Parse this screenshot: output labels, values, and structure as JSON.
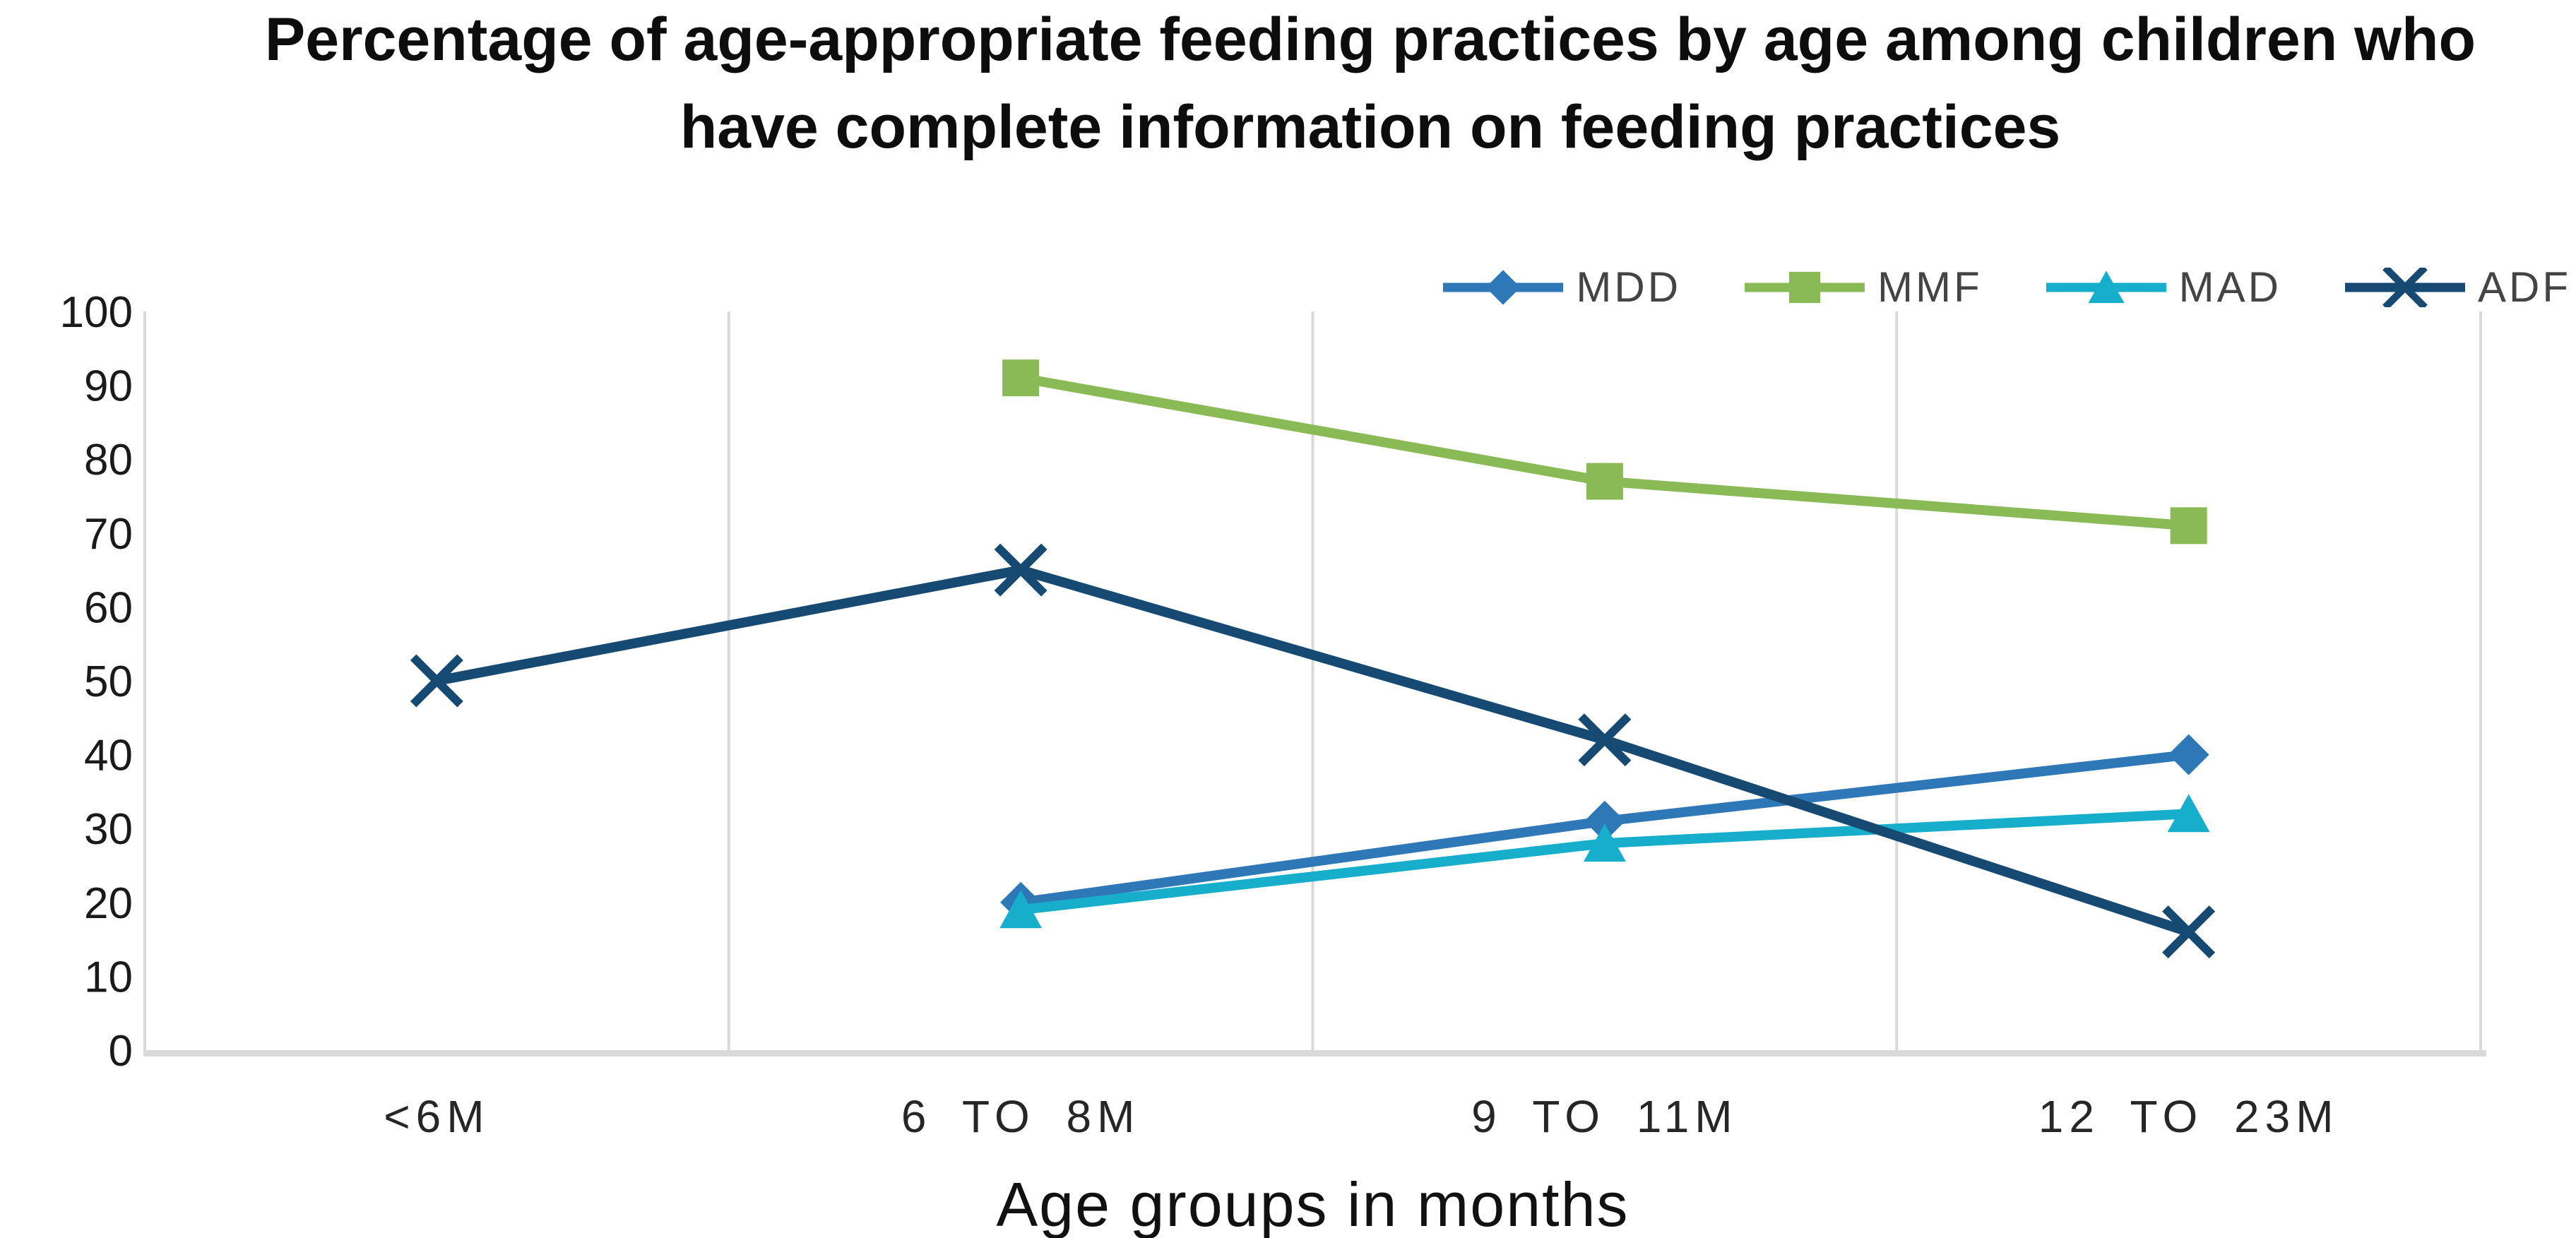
{
  "title": {
    "line1": "Percentage of age-appropriate feeding practices by age among children who",
    "line2": "have complete information on feeding practices"
  },
  "chart_data": {
    "type": "line",
    "title": "Percentage of age-appropriate feeding practices by age among children who have complete information on feeding practices",
    "categories": [
      "<6M",
      "6 TO 8M",
      "9 TO 11M",
      "12 TO 23M"
    ],
    "series": [
      {
        "name": "MDD",
        "color": "#2E78B8",
        "marker": "diamond",
        "values": [
          null,
          20,
          31,
          40
        ]
      },
      {
        "name": "MMF",
        "color": "#8ABA55",
        "marker": "square",
        "values": [
          null,
          91,
          77,
          71
        ]
      },
      {
        "name": "MAD",
        "color": "#17AECB",
        "marker": "triangle",
        "values": [
          null,
          19,
          28,
          32
        ]
      },
      {
        "name": "ADF",
        "color": "#174A73",
        "marker": "x",
        "values": [
          50,
          65,
          42,
          16
        ]
      }
    ],
    "xlabel": "Age groups in months",
    "ylabel": "",
    "ylim": [
      0,
      100
    ],
    "y_tick_step": 10,
    "gridlines": "vertical-only",
    "legend_position": "top-right",
    "axis_color": "#D9D9D9",
    "y_tick_label_color": "#1a1a1a",
    "x_tick_label_color": "#262626"
  }
}
